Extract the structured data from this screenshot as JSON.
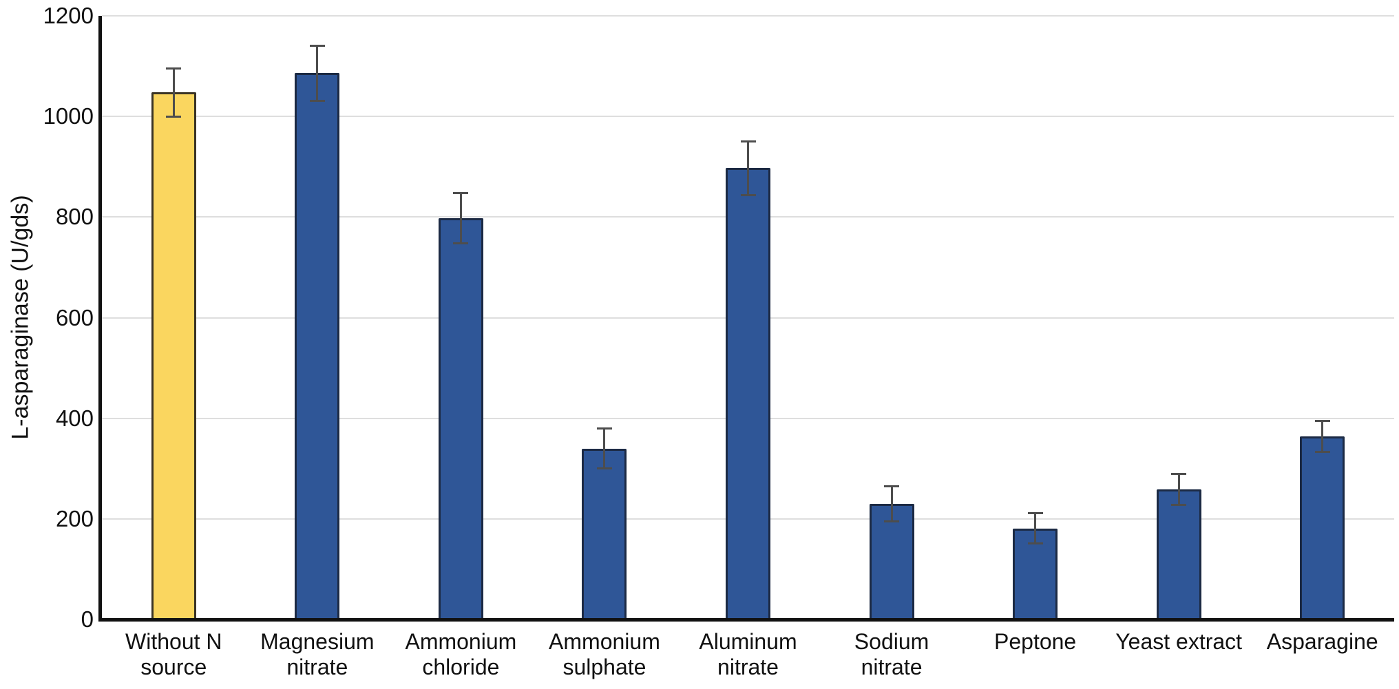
{
  "chart_data": {
    "type": "bar",
    "ylabel": "L-asparaginase (U/gds)",
    "ylim": [
      0,
      1200
    ],
    "yticks": [
      0,
      200,
      400,
      600,
      800,
      1000,
      1200
    ],
    "grid": true,
    "legend": "none",
    "categories": [
      [
        "Without N",
        "source"
      ],
      [
        "Magnesium",
        "nitrate"
      ],
      [
        "Ammonium",
        "chloride"
      ],
      [
        "Ammonium",
        "sulphate"
      ],
      [
        "Aluminum",
        "nitrate"
      ],
      [
        "Sodium",
        "nitrate"
      ],
      [
        "Peptone"
      ],
      [
        "Yeast extract"
      ],
      [
        "Asparagine"
      ]
    ],
    "values": [
      1048,
      1086,
      798,
      340,
      897,
      230,
      181,
      259,
      364
    ],
    "errors": [
      48,
      55,
      50,
      40,
      53,
      35,
      30,
      31,
      31
    ],
    "colors": {
      "highlight_index": 0,
      "highlight_fill": "#FAD65F",
      "highlight_border": "#3A3425",
      "default_fill": "#2F5697",
      "default_border": "#1C2A44",
      "error_bar": "#4D4D4D",
      "grid": "#DEDEDE",
      "axis": "#111111",
      "text": "#111111"
    }
  }
}
